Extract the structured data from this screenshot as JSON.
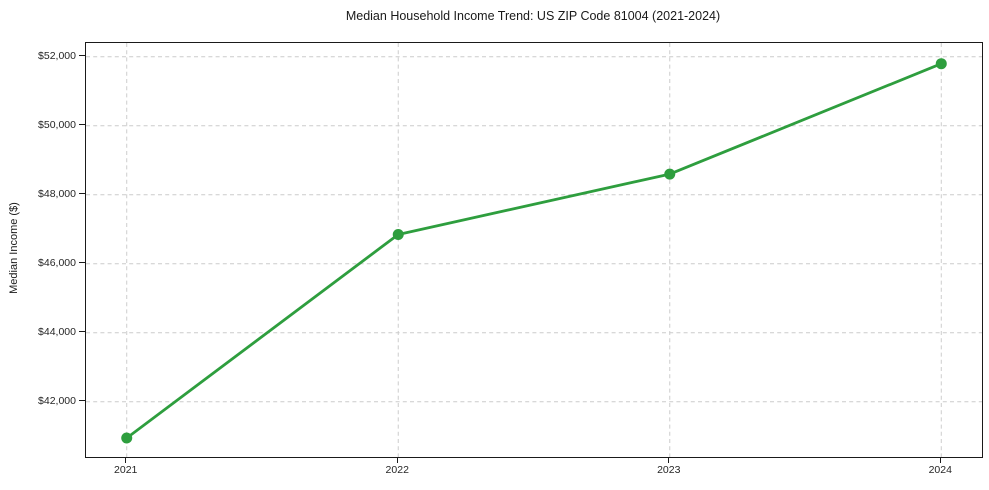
{
  "figure": {
    "background": "#ffffff"
  },
  "chart_data": {
    "type": "line",
    "title": "Median Household Income Trend: US ZIP Code 81004 (2021-2024)",
    "xlabel": "",
    "ylabel": "Median Income ($)",
    "x": [
      2021,
      2022,
      2023,
      2024
    ],
    "series": [
      {
        "name": "Median Household Income",
        "values": [
          40950,
          46850,
          48600,
          51800
        ],
        "color": "#2e9e3e",
        "marker": "circle",
        "marker_radius": 5.5,
        "line_width": 2.8
      }
    ],
    "xticks": [
      2021,
      2022,
      2023,
      2024
    ],
    "xtick_labels": [
      "2021",
      "2022",
      "2023",
      "2024"
    ],
    "yticks": [
      42000,
      44000,
      46000,
      48000,
      50000,
      52000
    ],
    "ytick_labels": [
      "$42,000",
      "$44,000",
      "$46,000",
      "$48,000",
      "$50,000",
      "$52,000"
    ],
    "xlim": [
      2020.85,
      2024.15
    ],
    "ylim": [
      40400,
      52400
    ],
    "grid": true,
    "grid_style": "dashed",
    "grid_color": "#cccccc",
    "spine_color": "#1a1a1a",
    "legend_position": "none"
  }
}
